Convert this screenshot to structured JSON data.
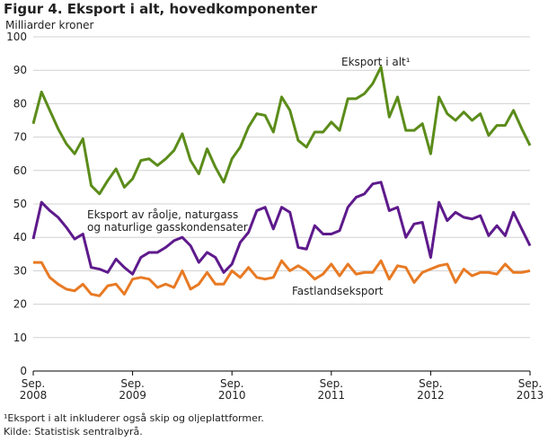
{
  "chart_data": {
    "type": "line",
    "title": "Figur 4. Eksport i alt, hovedkomponenter",
    "y_label": "Milliarder kroner",
    "categories": [
      "Sep. 2008",
      null,
      null,
      null,
      null,
      null,
      null,
      null,
      null,
      null,
      null,
      null,
      "Sep. 2009",
      null,
      null,
      null,
      null,
      null,
      null,
      null,
      null,
      null,
      null,
      null,
      "Sep. 2010",
      null,
      null,
      null,
      null,
      null,
      null,
      null,
      null,
      null,
      null,
      null,
      "Sep. 2011",
      null,
      null,
      null,
      null,
      null,
      null,
      null,
      null,
      null,
      null,
      null,
      "Sep. 2012",
      null,
      null,
      null,
      null,
      null,
      null,
      null,
      null,
      null,
      null,
      null,
      "Sep. 2013"
    ],
    "series": [
      {
        "name": "Eksport i alt¹",
        "color": "#5b8c1a",
        "values": [
          74,
          83.5,
          78,
          72.5,
          68,
          65,
          69.5,
          55.5,
          53,
          57,
          60.5,
          55,
          57.5,
          63,
          63.5,
          61.5,
          63.5,
          66,
          71,
          63,
          59,
          66.5,
          61,
          56.5,
          63.5,
          67,
          73,
          77,
          76.5,
          71.5,
          82,
          78,
          69,
          67,
          71.5,
          71.5,
          74.5,
          72,
          81.5,
          81.5,
          83,
          86,
          91,
          76,
          82,
          72,
          72,
          74,
          65,
          82,
          77,
          75,
          77.5,
          75,
          77,
          70.5,
          73.5,
          73.5,
          78,
          72.5,
          67.5
        ]
      },
      {
        "name": "Eksport av råolje, naturgass og naturlige gasskondensater",
        "color": "#5e1a8c",
        "values": [
          39.5,
          50.5,
          48,
          46,
          43,
          39.5,
          41,
          31,
          30.5,
          29.5,
          33.5,
          31,
          29,
          34,
          35.5,
          35.5,
          37,
          39,
          40,
          37.5,
          32.5,
          35.5,
          34,
          29.5,
          32,
          38.5,
          41.5,
          48,
          49,
          42.5,
          49,
          47.5,
          37,
          36.5,
          43.5,
          41,
          41,
          42,
          49,
          52,
          53,
          56,
          56.5,
          48,
          49,
          40,
          44,
          44.5,
          34,
          50.5,
          45,
          47.5,
          46,
          45.5,
          46.5,
          40.5,
          43.5,
          40.5,
          47.5,
          42.5,
          37.5
        ]
      },
      {
        "name": "Fastlandseksport",
        "color": "#e87a24",
        "values": [
          32.5,
          32.5,
          28,
          26,
          24.5,
          24,
          26,
          23,
          22.5,
          25.5,
          26,
          23,
          27.5,
          28,
          27.5,
          25,
          26,
          25,
          30,
          24.5,
          26,
          29.5,
          26,
          26,
          30,
          28,
          31,
          28,
          27.5,
          28,
          33,
          30,
          31.5,
          30,
          27.5,
          29,
          32,
          28.5,
          32,
          29,
          29.5,
          29.5,
          33,
          27.5,
          31.5,
          31,
          26.5,
          29.5,
          30.5,
          31.5,
          32,
          26.5,
          30.5,
          28.5,
          29.5,
          29.5,
          29,
          32,
          29.5,
          29.5,
          30
        ]
      }
    ],
    "ylim": [
      0,
      100
    ],
    "yticks": [
      0,
      10,
      20,
      30,
      40,
      50,
      60,
      70,
      80,
      90,
      100
    ],
    "grid": true,
    "footnote": "¹Eksport i alt inkluderer også skip og oljeplattformer.",
    "source": "Kilde: Statistisk sentralbyrå."
  }
}
